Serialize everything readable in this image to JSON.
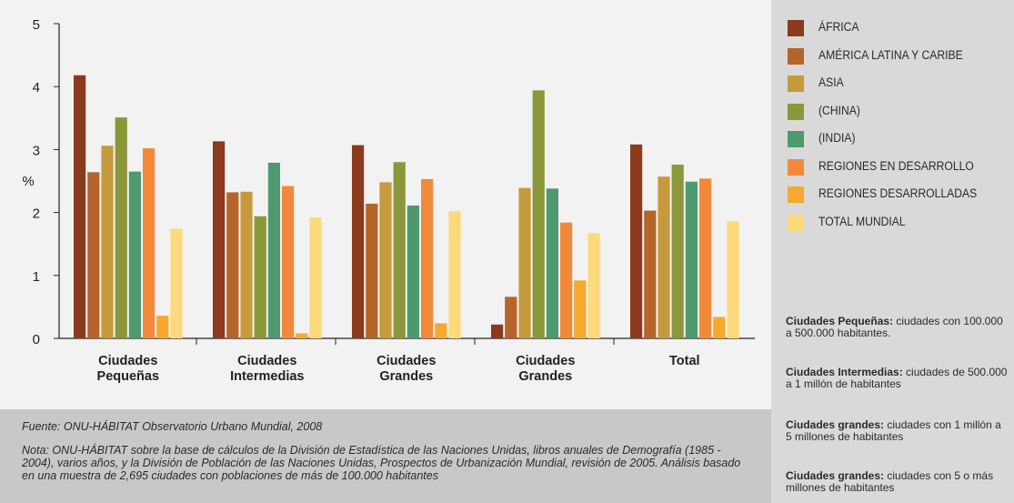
{
  "chart_data": {
    "type": "bar",
    "ylabel": "%",
    "ylim": [
      0,
      5
    ],
    "yticks": [
      "0",
      "1",
      "2",
      "3",
      "4",
      "5"
    ],
    "categories": [
      [
        "Ciudades",
        "Pequeñas"
      ],
      [
        "Ciudades",
        "Intermedias"
      ],
      [
        "Ciudades",
        "Grandes"
      ],
      [
        "Ciudades",
        "Grandes"
      ],
      [
        "Total"
      ]
    ],
    "series": [
      {
        "name": "ÁFRICA",
        "color": "#8b3a1e",
        "values": [
          4.18,
          3.13,
          3.07,
          0.22,
          3.08
        ]
      },
      {
        "name": "AMÉRICA LATINA Y CARIBE",
        "color": "#b5652a",
        "values": [
          2.64,
          2.32,
          2.14,
          0.66,
          2.03
        ]
      },
      {
        "name": "ASIA",
        "color": "#c49a3c",
        "values": [
          3.06,
          2.33,
          2.48,
          2.39,
          2.57
        ]
      },
      {
        "name": "(CHINA)",
        "color": "#8c973a",
        "values": [
          3.51,
          1.94,
          2.8,
          3.94,
          2.76
        ]
      },
      {
        "name": "(INDIA)",
        "color": "#4e9a6e",
        "values": [
          2.65,
          2.79,
          2.11,
          2.38,
          2.49
        ]
      },
      {
        "name": "REGIONES EN DESARROLLO",
        "color": "#f2893a",
        "values": [
          3.02,
          2.42,
          2.53,
          1.84,
          2.54
        ]
      },
      {
        "name": "REGIONES DESARROLLADAS",
        "color": "#f6a92d",
        "values": [
          0.36,
          0.08,
          0.24,
          0.92,
          0.34
        ]
      },
      {
        "name": "TOTAL MUNDIAL",
        "color": "#fcd97a",
        "values": [
          1.74,
          1.92,
          2.02,
          1.67,
          1.86
        ]
      }
    ]
  },
  "definitions": [
    {
      "term": "Ciudades Pequeñas:",
      "text": " ciudades con 100.000 a 500.000 habitantes."
    },
    {
      "term": "Ciudades Intermedias:",
      "text": " ciudades de 500.000 a 1 millón de habitantes"
    },
    {
      "term": "Ciudades grandes:",
      "text": " ciudades con 1 millón a 5 millones de habitantes"
    },
    {
      "term": "Ciudades grandes:",
      "text": " ciudades con 5 o más millones de habitantes"
    }
  ],
  "notes": {
    "source": "Fuente: ONU-HÁBITAT Observatorio Urbano Mundial, 2008",
    "note": "Nota: ONU-HÁBITAT sobre la base de cálculos de la División de Estadística de las Naciones Unidas, libros anuales de Demografía (1985 - 2004), varios años, y la División de Población de las Naciones Unidas, Prospectos de Urbanización Mundial, revisión de 2005. Análisis basado en una muestra de 2,695 ciudades con poblaciones de más de 100.000 habitantes"
  }
}
